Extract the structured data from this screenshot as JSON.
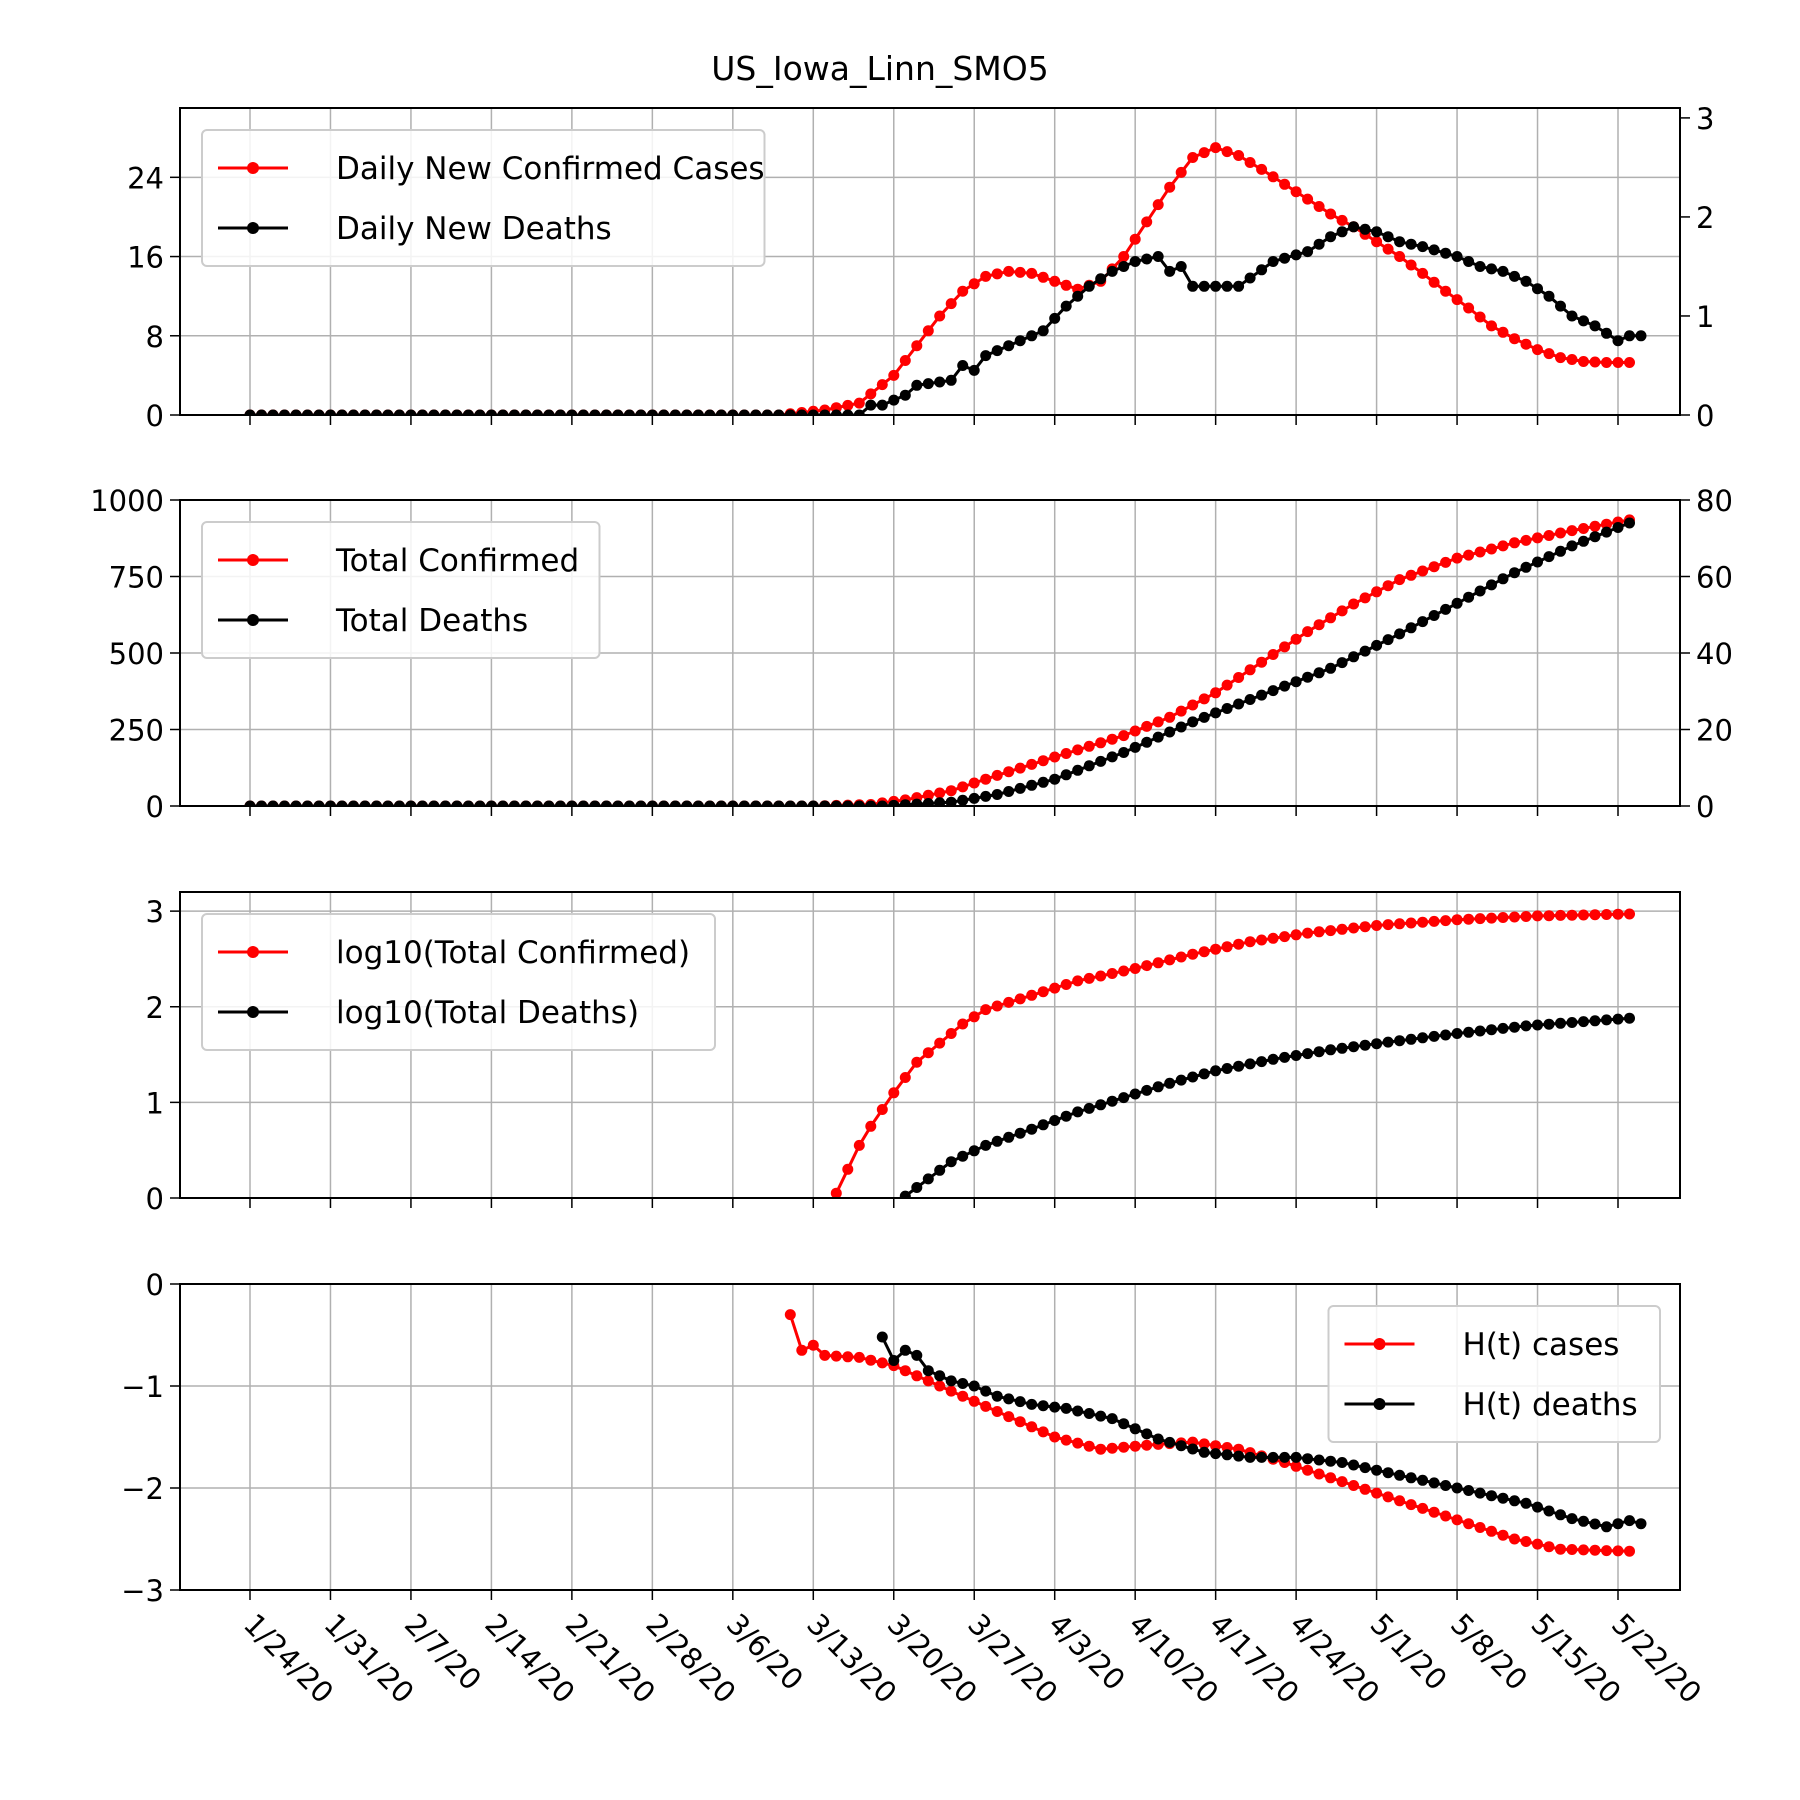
{
  "title": "US_Iowa_Linn_SMO5",
  "colors": {
    "cases": "#ff0000",
    "deaths": "#000000",
    "grid": "#b0b0b0"
  },
  "x_tick_labels": [
    "1/24/20",
    "1/31/20",
    "2/7/20",
    "2/14/20",
    "2/21/20",
    "2/28/20",
    "3/6/20",
    "3/13/20",
    "3/20/20",
    "3/27/20",
    "4/3/20",
    "4/10/20",
    "4/17/20",
    "4/24/20",
    "5/1/20",
    "5/8/20",
    "5/15/20",
    "5/22/20"
  ],
  "chart_data": [
    {
      "type": "line",
      "panel": "daily",
      "x_range": [
        "1/24/20",
        "5/25/20"
      ],
      "left_axis": {
        "ylim": [
          0,
          31
        ],
        "ticks": [
          0,
          8,
          16,
          24
        ]
      },
      "right_axis": {
        "ylim": [
          0,
          3.1
        ],
        "ticks": [
          0,
          1,
          2,
          3
        ]
      },
      "legend_location": "upper-left",
      "grid": true,
      "series": [
        {
          "name": "Daily New Confirmed Cases",
          "axis": "left",
          "color": "#ff0000",
          "points": [
            [
              "1/24/20",
              0
            ],
            [
              "3/10/20",
              0
            ],
            [
              "3/14/20",
              0.5
            ],
            [
              "3/17/20",
              1.2
            ],
            [
              "3/20/20",
              4
            ],
            [
              "3/22/20",
              7
            ],
            [
              "3/24/20",
              10
            ],
            [
              "3/26/20",
              12.5
            ],
            [
              "3/28/20",
              14
            ],
            [
              "3/30/20",
              14.5
            ],
            [
              "4/1/20",
              14.3
            ],
            [
              "4/3/20",
              13.5
            ],
            [
              "4/5/20",
              12.7
            ],
            [
              "4/7/20",
              13.5
            ],
            [
              "4/9/20",
              16
            ],
            [
              "4/11/20",
              19.5
            ],
            [
              "4/13/20",
              23
            ],
            [
              "4/15/20",
              26
            ],
            [
              "4/17/20",
              27
            ],
            [
              "4/19/20",
              26.2
            ],
            [
              "4/21/20",
              24.8
            ],
            [
              "4/23/20",
              23.3
            ],
            [
              "4/25/20",
              21.8
            ],
            [
              "4/27/20",
              20.3
            ],
            [
              "4/29/20",
              19
            ],
            [
              "5/1/20",
              17.5
            ],
            [
              "5/3/20",
              16
            ],
            [
              "5/5/20",
              14.3
            ],
            [
              "5/7/20",
              12.5
            ],
            [
              "5/9/20",
              10.8
            ],
            [
              "5/11/20",
              9
            ],
            [
              "5/13/20",
              7.7
            ],
            [
              "5/15/20",
              6.6
            ],
            [
              "5/17/20",
              5.8
            ],
            [
              "5/19/20",
              5.4
            ],
            [
              "5/21/20",
              5.3
            ],
            [
              "5/23/20",
              5.3
            ]
          ]
        },
        {
          "name": "Daily New Deaths",
          "axis": "right",
          "color": "#000000",
          "points": [
            [
              "1/24/20",
              0
            ],
            [
              "3/17/20",
              0
            ],
            [
              "3/18/20",
              0.1
            ],
            [
              "3/19/20",
              0.1
            ],
            [
              "3/21/20",
              0.2
            ],
            [
              "3/22/20",
              0.3
            ],
            [
              "3/25/20",
              0.35
            ],
            [
              "3/26/20",
              0.5
            ],
            [
              "3/27/20",
              0.45
            ],
            [
              "3/28/20",
              0.6
            ],
            [
              "3/31/20",
              0.75
            ],
            [
              "4/2/20",
              0.85
            ],
            [
              "4/4/20",
              1.1
            ],
            [
              "4/6/20",
              1.3
            ],
            [
              "4/8/20",
              1.45
            ],
            [
              "4/10/20",
              1.55
            ],
            [
              "4/12/20",
              1.6
            ],
            [
              "4/13/20",
              1.45
            ],
            [
              "4/14/20",
              1.5
            ],
            [
              "4/15/20",
              1.3
            ],
            [
              "4/19/20",
              1.3
            ],
            [
              "4/22/20",
              1.55
            ],
            [
              "4/25/20",
              1.65
            ],
            [
              "4/27/20",
              1.8
            ],
            [
              "4/29/20",
              1.9
            ],
            [
              "5/1/20",
              1.85
            ],
            [
              "5/3/20",
              1.75
            ],
            [
              "5/5/20",
              1.7
            ],
            [
              "5/8/20",
              1.6
            ],
            [
              "5/10/20",
              1.5
            ],
            [
              "5/12/20",
              1.45
            ],
            [
              "5/14/20",
              1.35
            ],
            [
              "5/16/20",
              1.2
            ],
            [
              "5/18/20",
              1.0
            ],
            [
              "5/20/20",
              0.9
            ],
            [
              "5/22/20",
              0.75
            ],
            [
              "5/23/20",
              0.8
            ],
            [
              "5/24/20",
              0.8
            ]
          ]
        }
      ]
    },
    {
      "type": "line",
      "panel": "total",
      "x_range": [
        "1/24/20",
        "5/25/20"
      ],
      "left_axis": {
        "ylim": [
          0,
          1000
        ],
        "ticks": [
          0,
          250,
          500,
          750,
          1000
        ]
      },
      "right_axis": {
        "ylim": [
          0,
          80
        ],
        "ticks": [
          0,
          20,
          40,
          60,
          80
        ]
      },
      "legend_location": "upper-left",
      "grid": true,
      "series": [
        {
          "name": "Total Confirmed",
          "axis": "left",
          "color": "#ff0000",
          "points": [
            [
              "1/24/20",
              0
            ],
            [
              "3/13/20",
              0
            ],
            [
              "3/18/20",
              5
            ],
            [
              "3/21/20",
              20
            ],
            [
              "3/25/20",
              50
            ],
            [
              "3/29/20",
              100
            ],
            [
              "4/3/20",
              160
            ],
            [
              "4/9/20",
              230
            ],
            [
              "4/13/20",
              290
            ],
            [
              "4/17/20",
              370
            ],
            [
              "4/21/20",
              470
            ],
            [
              "4/25/20",
              570
            ],
            [
              "4/29/20",
              660
            ],
            [
              "5/3/20",
              740
            ],
            [
              "5/8/20",
              810
            ],
            [
              "5/13/20",
              860
            ],
            [
              "5/18/20",
              900
            ],
            [
              "5/23/20",
              935
            ]
          ]
        },
        {
          "name": "Total Deaths",
          "axis": "right",
          "color": "#000000",
          "points": [
            [
              "1/24/20",
              0
            ],
            [
              "3/19/20",
              0
            ],
            [
              "3/25/20",
              1
            ],
            [
              "3/29/20",
              3
            ],
            [
              "4/3/20",
              7
            ],
            [
              "4/9/20",
              14
            ],
            [
              "4/15/20",
              22
            ],
            [
              "4/21/20",
              29
            ],
            [
              "4/27/20",
              36
            ],
            [
              "5/3/20",
              45
            ],
            [
              "5/8/20",
              53
            ],
            [
              "5/13/20",
              61
            ],
            [
              "5/18/20",
              68
            ],
            [
              "5/23/20",
              74
            ]
          ]
        }
      ]
    },
    {
      "type": "line",
      "panel": "log",
      "x_range": [
        "1/24/20",
        "5/25/20"
      ],
      "left_axis": {
        "ylim": [
          0,
          3.2
        ],
        "ticks": [
          0,
          1,
          2,
          3
        ]
      },
      "legend_location": "upper-left",
      "grid": true,
      "series": [
        {
          "name": "log10(Total Confirmed)",
          "color": "#ff0000",
          "points": [
            [
              "3/15/20",
              0.05
            ],
            [
              "3/16/20",
              0.3
            ],
            [
              "3/17/20",
              0.55
            ],
            [
              "3/18/20",
              0.75
            ],
            [
              "3/20/20",
              1.1
            ],
            [
              "3/22/20",
              1.42
            ],
            [
              "3/24/20",
              1.62
            ],
            [
              "3/26/20",
              1.82
            ],
            [
              "3/28/20",
              1.97
            ],
            [
              "4/1/20",
              2.12
            ],
            [
              "4/5/20",
              2.27
            ],
            [
              "4/10/20",
              2.4
            ],
            [
              "4/15/20",
              2.55
            ],
            [
              "4/20/20",
              2.68
            ],
            [
              "4/25/20",
              2.77
            ],
            [
              "5/1/20",
              2.85
            ],
            [
              "5/8/20",
              2.91
            ],
            [
              "5/15/20",
              2.95
            ],
            [
              "5/23/20",
              2.97
            ]
          ]
        },
        {
          "name": "log10(Total Deaths)",
          "color": "#000000",
          "points": [
            [
              "3/21/20",
              0.02
            ],
            [
              "3/23/20",
              0.2
            ],
            [
              "3/25/20",
              0.38
            ],
            [
              "3/28/20",
              0.55
            ],
            [
              "4/1/20",
              0.72
            ],
            [
              "4/5/20",
              0.9
            ],
            [
              "4/9/20",
              1.05
            ],
            [
              "4/13/20",
              1.2
            ],
            [
              "4/17/20",
              1.33
            ],
            [
              "4/22/20",
              1.45
            ],
            [
              "4/27/20",
              1.55
            ],
            [
              "5/2/20",
              1.63
            ],
            [
              "5/8/20",
              1.72
            ],
            [
              "5/14/20",
              1.8
            ],
            [
              "5/23/20",
              1.88
            ]
          ]
        }
      ]
    },
    {
      "type": "line",
      "panel": "hazard",
      "x_range": [
        "1/24/20",
        "5/25/20"
      ],
      "left_axis": {
        "ylim": [
          -3,
          0
        ],
        "ticks": [
          0,
          -1,
          -2,
          -3
        ]
      },
      "legend_location": "upper-right",
      "grid": true,
      "series": [
        {
          "name": "H(t) cases",
          "color": "#ff0000",
          "points": [
            [
              "3/11/20",
              -0.3
            ],
            [
              "3/12/20",
              -0.65
            ],
            [
              "3/13/20",
              -0.6
            ],
            [
              "3/14/20",
              -0.7
            ],
            [
              "3/17/20",
              -0.72
            ],
            [
              "3/20/20",
              -0.8
            ],
            [
              "3/23/20",
              -0.95
            ],
            [
              "3/26/20",
              -1.1
            ],
            [
              "3/30/20",
              -1.3
            ],
            [
              "4/3/20",
              -1.5
            ],
            [
              "4/7/20",
              -1.62
            ],
            [
              "4/11/20",
              -1.58
            ],
            [
              "4/15/20",
              -1.55
            ],
            [
              "4/19/20",
              -1.62
            ],
            [
              "4/23/20",
              -1.75
            ],
            [
              "4/27/20",
              -1.9
            ],
            [
              "5/1/20",
              -2.05
            ],
            [
              "5/5/20",
              -2.2
            ],
            [
              "5/9/20",
              -2.35
            ],
            [
              "5/13/20",
              -2.5
            ],
            [
              "5/17/20",
              -2.6
            ],
            [
              "5/23/20",
              -2.62
            ]
          ]
        },
        {
          "name": "H(t) deaths",
          "color": "#000000",
          "points": [
            [
              "3/19/20",
              -0.52
            ],
            [
              "3/20/20",
              -0.75
            ],
            [
              "3/21/20",
              -0.65
            ],
            [
              "3/22/20",
              -0.7
            ],
            [
              "3/23/20",
              -0.85
            ],
            [
              "3/25/20",
              -0.95
            ],
            [
              "3/27/20",
              -1.0
            ],
            [
              "3/29/20",
              -1.1
            ],
            [
              "4/1/20",
              -1.18
            ],
            [
              "4/4/20",
              -1.22
            ],
            [
              "4/8/20",
              -1.32
            ],
            [
              "4/12/20",
              -1.52
            ],
            [
              "4/16/20",
              -1.65
            ],
            [
              "4/20/20",
              -1.7
            ],
            [
              "4/24/20",
              -1.7
            ],
            [
              "4/28/20",
              -1.75
            ],
            [
              "5/2/20",
              -1.85
            ],
            [
              "5/6/20",
              -1.95
            ],
            [
              "5/10/20",
              -2.05
            ],
            [
              "5/14/20",
              -2.15
            ],
            [
              "5/18/20",
              -2.3
            ],
            [
              "5/21/20",
              -2.38
            ],
            [
              "5/23/20",
              -2.32
            ],
            [
              "5/24/20",
              -2.35
            ]
          ]
        }
      ]
    }
  ]
}
